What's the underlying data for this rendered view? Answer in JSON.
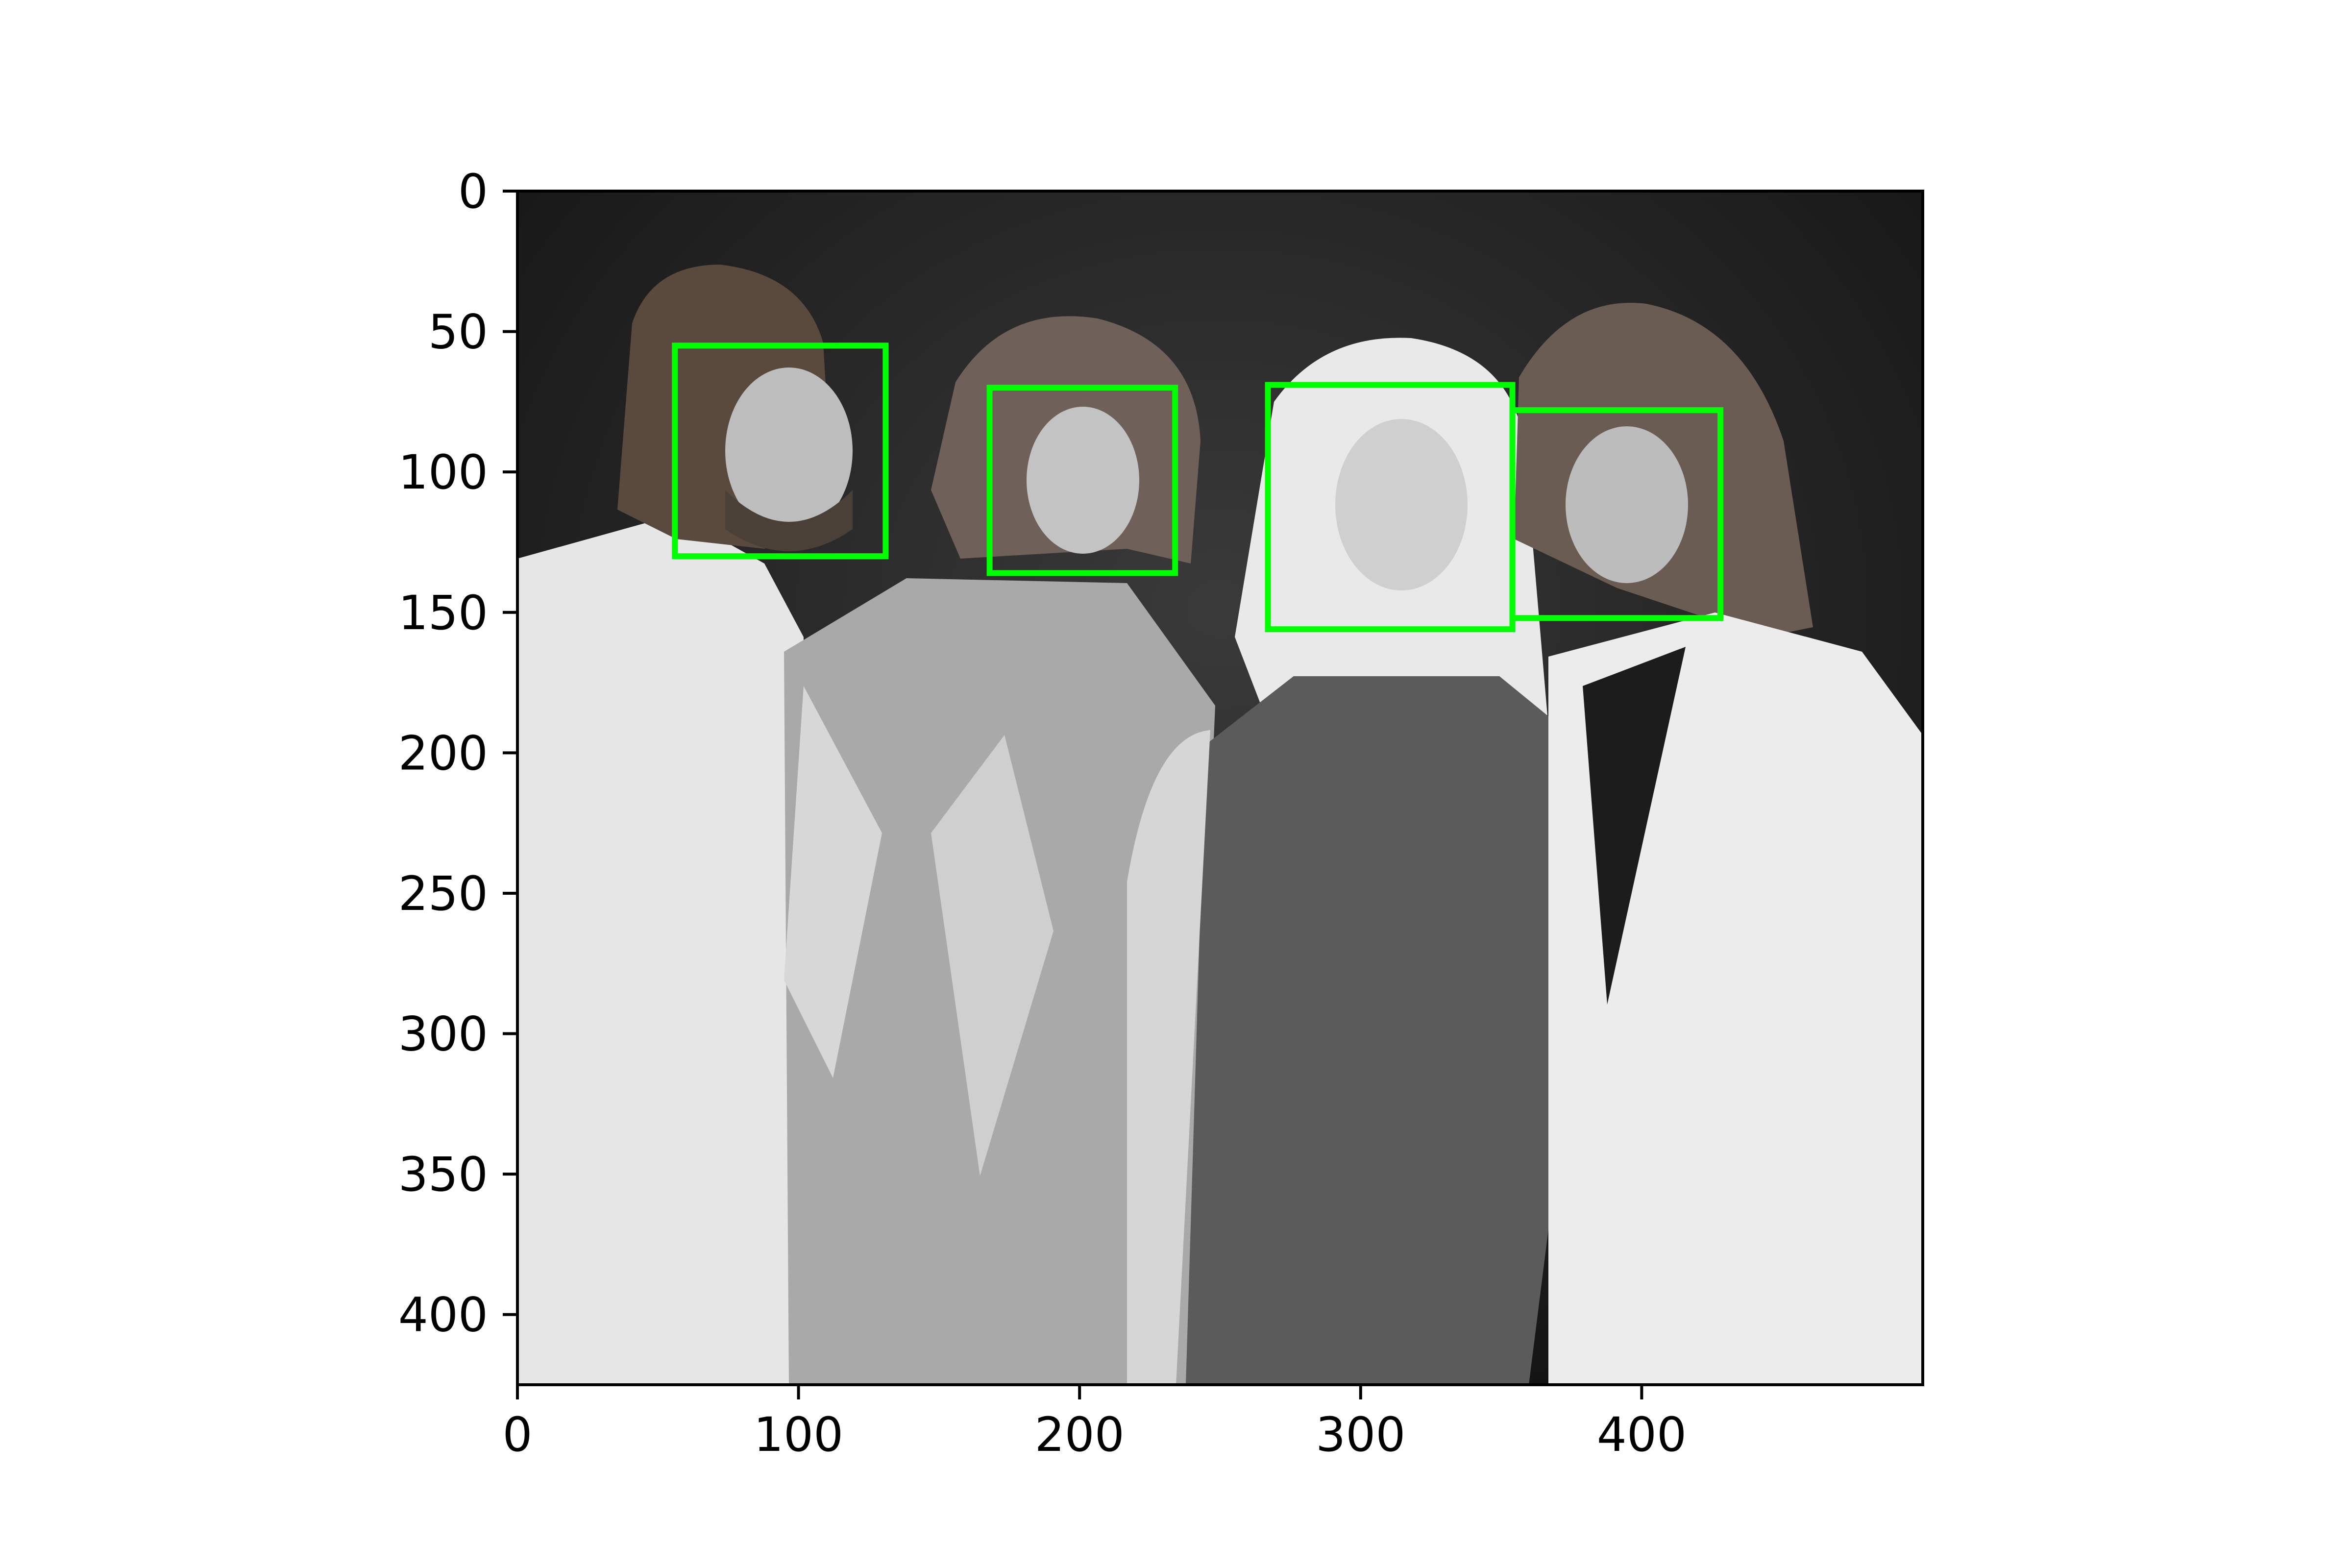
{
  "chart_data": {
    "type": "image",
    "title": "",
    "xlabel": "",
    "ylabel": "",
    "xlim": [
      0,
      500
    ],
    "ylim": [
      425,
      0
    ],
    "x_ticks": [
      0,
      100,
      200,
      300,
      400
    ],
    "y_ticks": [
      0,
      50,
      100,
      150,
      200,
      250,
      300,
      350,
      400
    ],
    "image_description": "black-and-white photograph of four smiling people standing together",
    "box_color": "#00ff00",
    "face_boxes": [
      {
        "x": 56,
        "y": 55,
        "w": 75,
        "h": 75
      },
      {
        "x": 168,
        "y": 70,
        "w": 66,
        "h": 66
      },
      {
        "x": 267,
        "y": 69,
        "w": 87,
        "h": 87
      },
      {
        "x": 354,
        "y": 78,
        "w": 74,
        "h": 74
      }
    ]
  }
}
